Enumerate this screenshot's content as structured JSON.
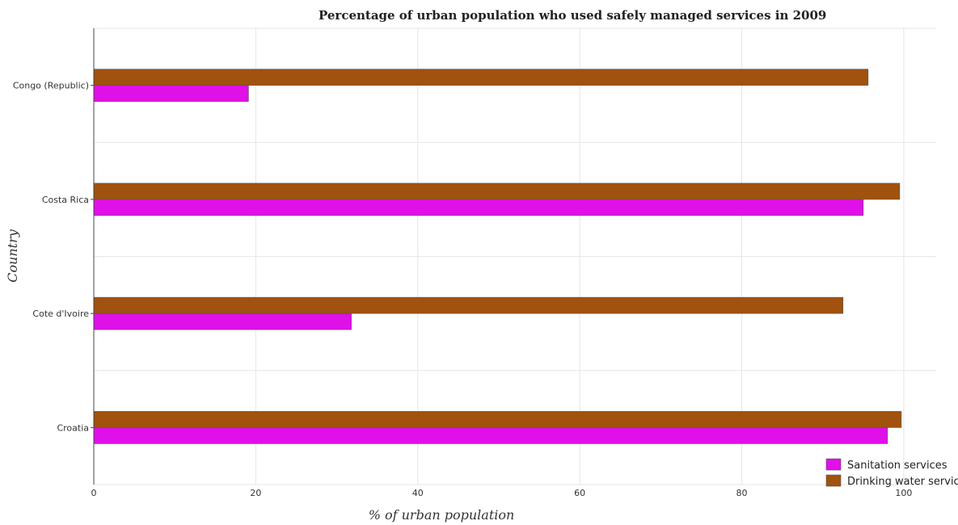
{
  "chart_data": {
    "type": "bar",
    "orientation": "horizontal",
    "title": "Percentage of urban population who used safely managed services in 2009",
    "xlabel": "% of urban population",
    "ylabel": "Country",
    "categories": [
      "Congo (Republic)",
      "Costa Rica",
      "Cote d'Ivoire",
      "Croatia"
    ],
    "series": [
      {
        "name": "Sanitation services",
        "color": "#e010e8",
        "values": [
          19.1,
          95.0,
          31.8,
          98.0
        ]
      },
      {
        "name": "Drinking water services",
        "color": "#a0520e",
        "values": [
          95.6,
          99.5,
          92.5,
          99.7
        ]
      }
    ],
    "xlim": [
      0,
      104
    ],
    "xticks": [
      "0",
      "20",
      "40",
      "60",
      "80",
      "100"
    ],
    "grid": true,
    "legend_position": "bottom-right"
  }
}
